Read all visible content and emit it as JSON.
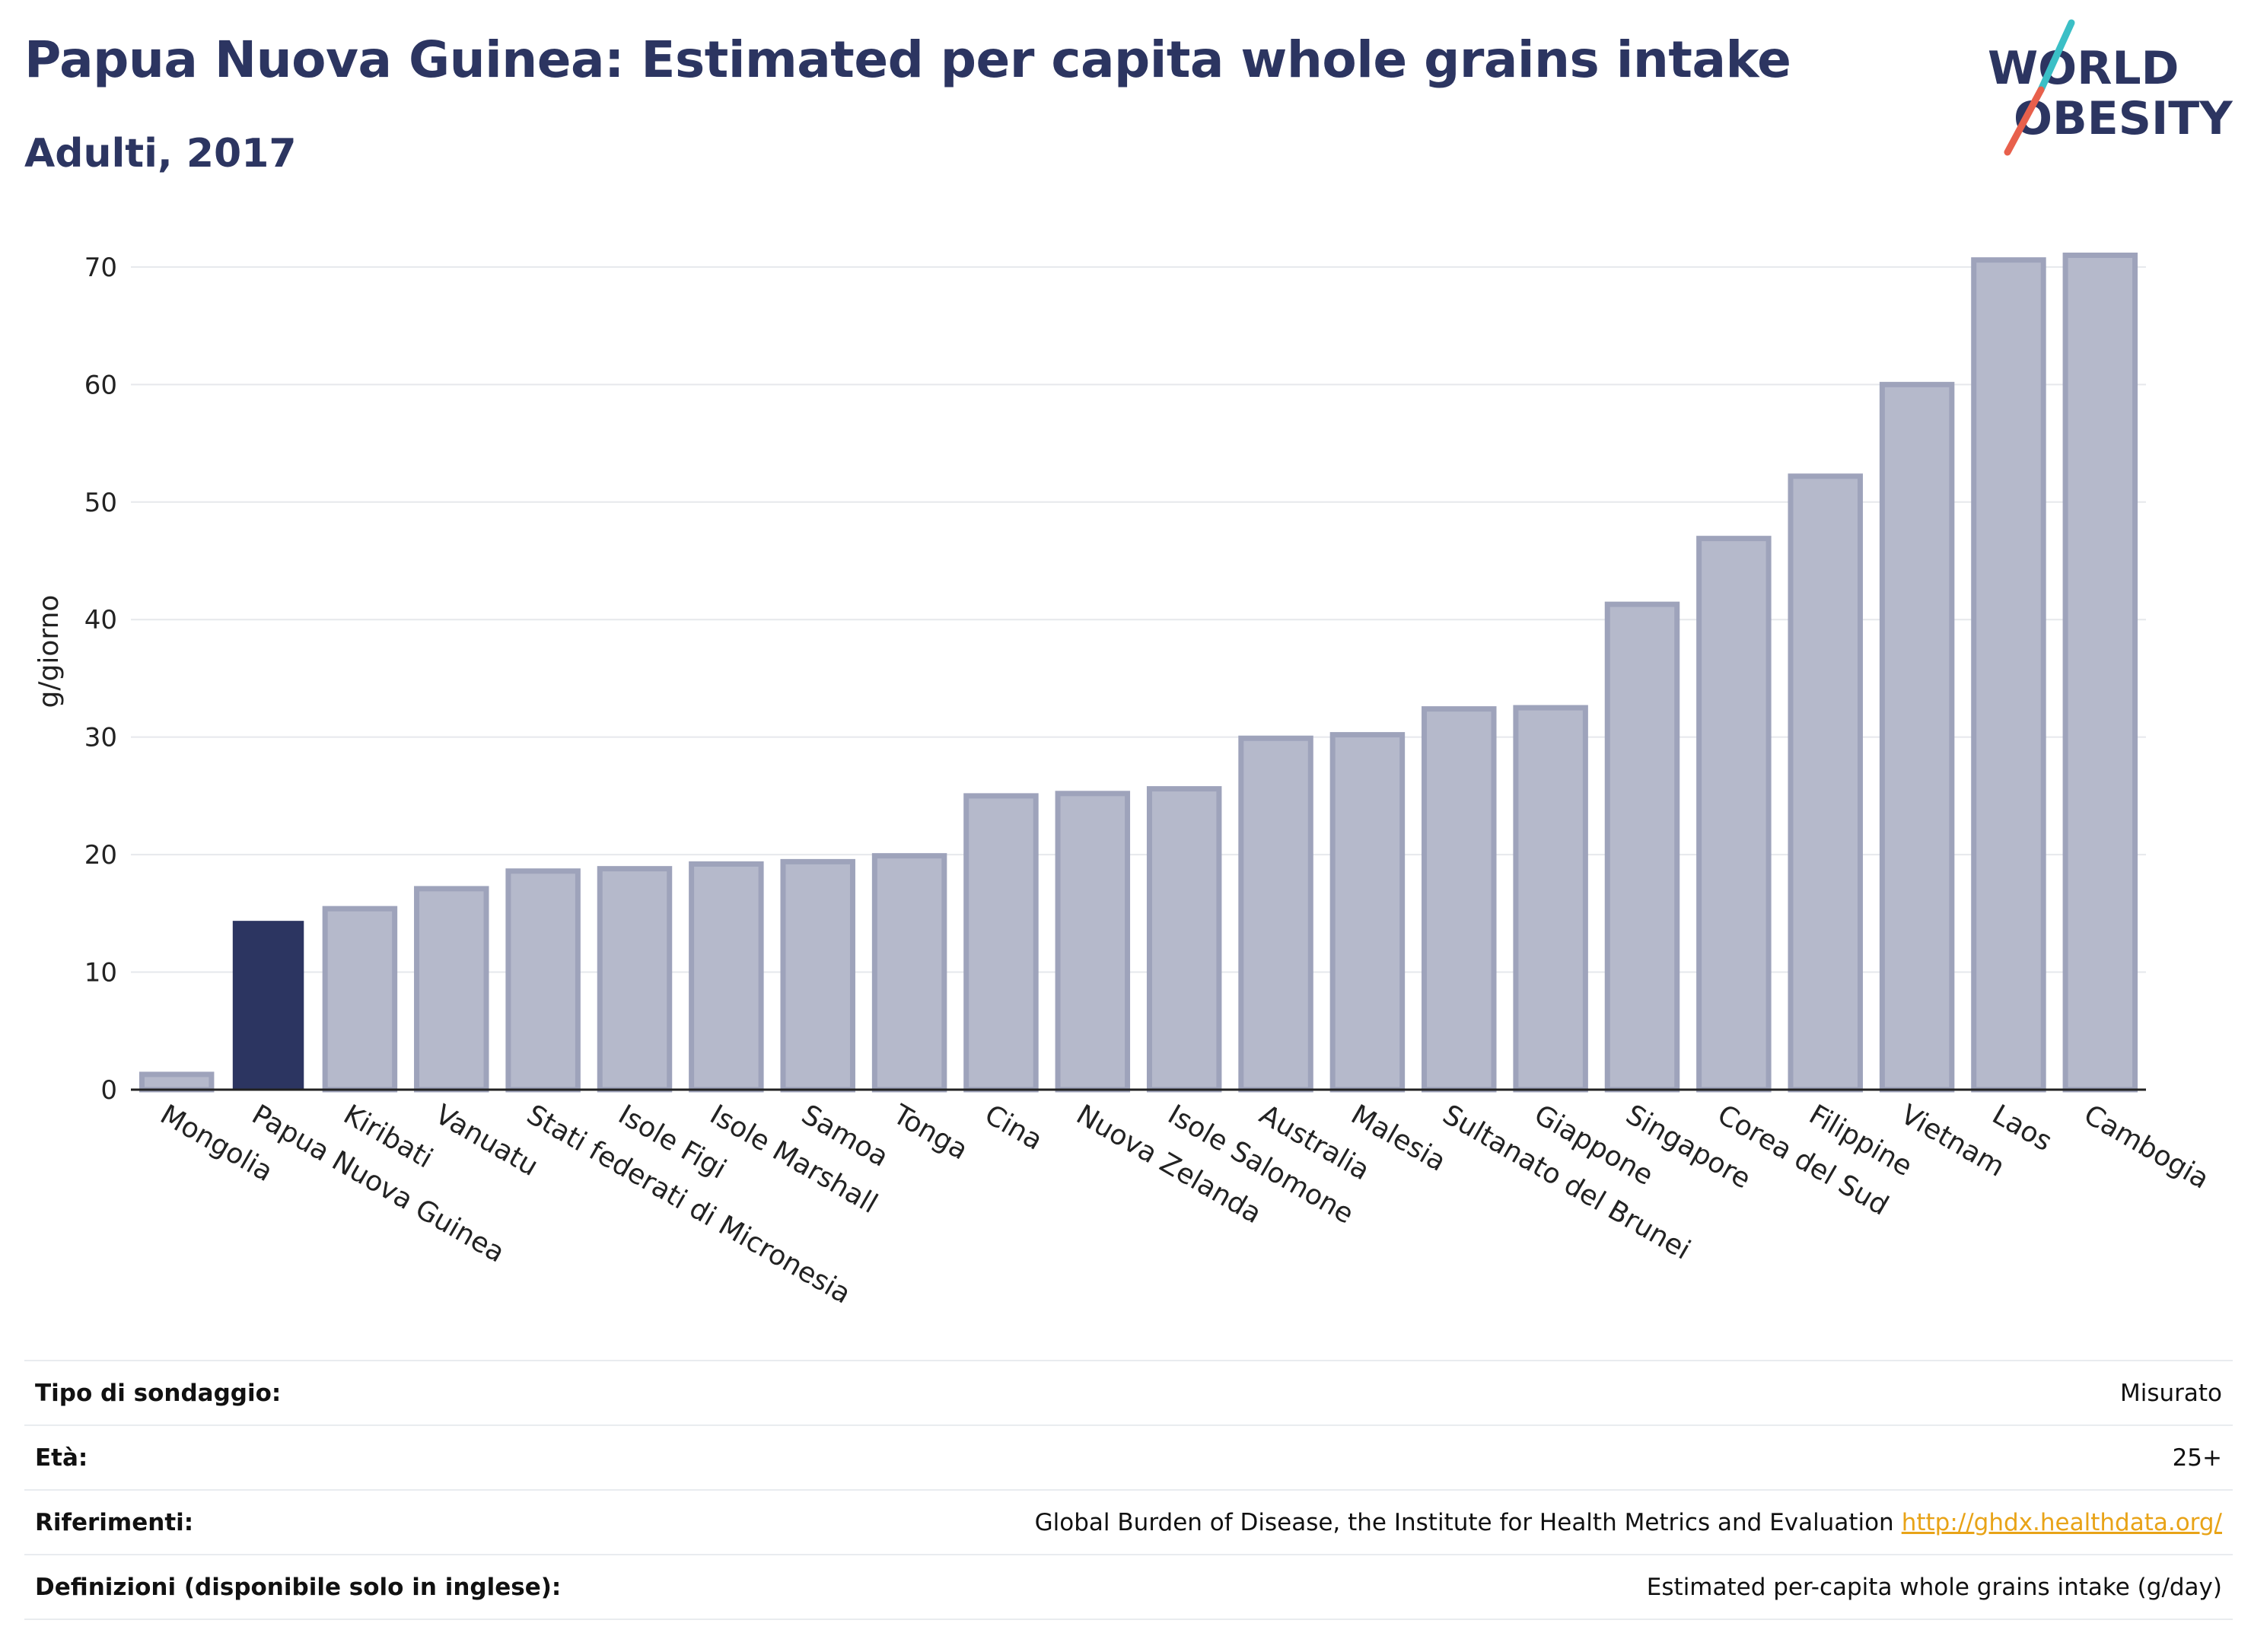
{
  "header": {
    "title": "Papua Nuova Guinea: Estimated per capita whole grains intake",
    "subtitle": "Adulti, 2017"
  },
  "logo": {
    "line1": "WORLD",
    "line2": "OBESITY",
    "accent_teal": "#3bbfc6",
    "accent_red": "#e8604c",
    "text_color": "#2c3561"
  },
  "chart_data": {
    "type": "bar",
    "ylabel": "g/giorno",
    "ylim": [
      0,
      72
    ],
    "yticks": [
      0,
      10,
      20,
      30,
      40,
      50,
      60,
      70
    ],
    "grid": true,
    "highlight": "Papua Nuova Guinea",
    "highlight_color": "#2c3561",
    "bar_color": "#b5b9cb",
    "bar_stroke": "#9ea3bb",
    "categories": [
      "Mongolia",
      "Papua Nuova Guinea",
      "Kiribati",
      "Vanuatu",
      "Stati federati di Micronesia",
      "Isole Figi",
      "Isole Marshall",
      "Samoa",
      "Tonga",
      "Cina",
      "Nuova Zelanda",
      "Isole Salomone",
      "Australia",
      "Malesia",
      "Sultanato del Brunei",
      "Giappone",
      "Singapore",
      "Corea del Sud",
      "Filippine",
      "Vietnam",
      "Laos",
      "Cambogia"
    ],
    "values": [
      1.3,
      14.3,
      15.4,
      17.1,
      18.6,
      18.8,
      19.2,
      19.4,
      19.9,
      25.0,
      25.2,
      25.6,
      29.9,
      30.2,
      32.4,
      32.5,
      41.3,
      46.9,
      52.2,
      60.0,
      70.6,
      71.0
    ]
  },
  "info": [
    {
      "label": "Tipo di sondaggio:",
      "value": "Misurato"
    },
    {
      "label": "Età:",
      "value": "25+"
    },
    {
      "label": "Riferimenti:",
      "value": "Global Burden of Disease, the Institute for Health Metrics and Evaluation",
      "link": "http://ghdx.healthdata.org/"
    },
    {
      "label": "Definizioni (disponibile solo in inglese):",
      "value": "Estimated per-capita whole grains intake (g/day)"
    }
  ]
}
